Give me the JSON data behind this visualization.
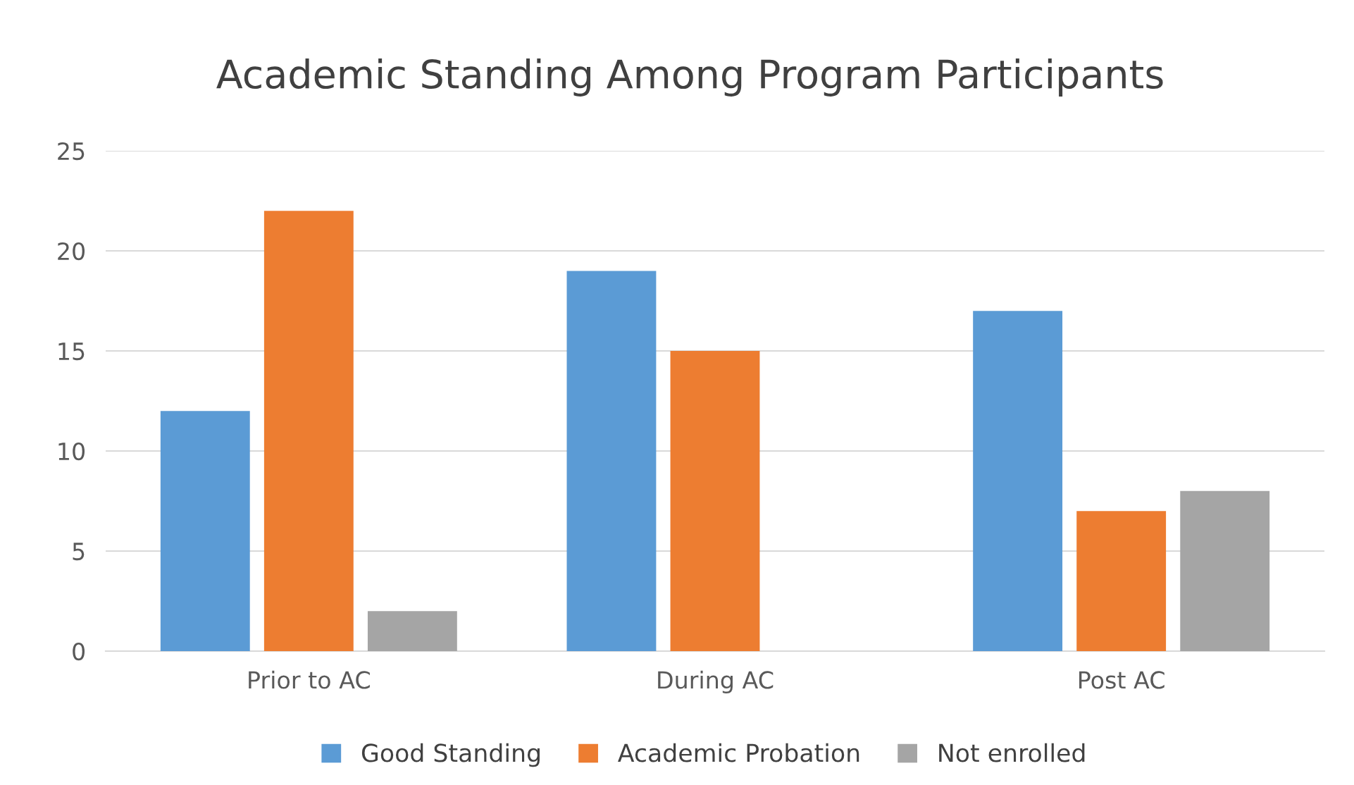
{
  "chart_data": {
    "type": "bar",
    "title": "Academic Standing Among Program Participants",
    "categories": [
      "Prior to AC",
      "During AC",
      "Post AC"
    ],
    "series": [
      {
        "name": "Good Standing",
        "color": "#5b9bd5",
        "values": [
          12,
          19,
          17
        ]
      },
      {
        "name": "Academic Probation",
        "color": "#ed7d31",
        "values": [
          22,
          15,
          7
        ]
      },
      {
        "name": "Not enrolled",
        "color": "#a5a5a5",
        "values": [
          2,
          0,
          8
        ]
      }
    ],
    "ylim": [
      0,
      25
    ],
    "yticks": [
      0,
      5,
      10,
      15,
      20,
      25
    ],
    "grid": "y",
    "legend": "bottom"
  }
}
